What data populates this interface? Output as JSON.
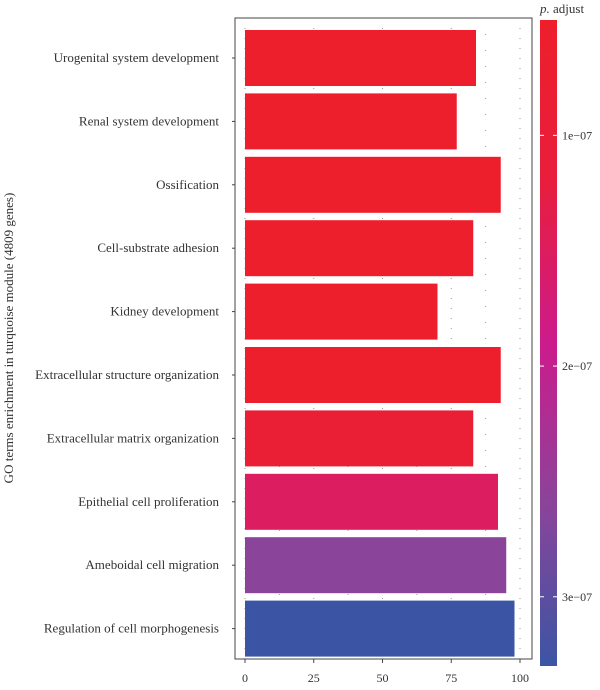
{
  "chart_data": {
    "type": "bar",
    "orientation": "horizontal",
    "title": "",
    "xlabel": "",
    "ylabel": "GO terms enrichment in turquoise module (4809 genes)",
    "xlim": [
      0,
      100
    ],
    "xticks": [
      0,
      25,
      50,
      75,
      100
    ],
    "categories": [
      "Urogenital system development",
      "Renal system development",
      "Ossification",
      "Cell-substrate adhesion",
      "Kidney development",
      "Extracellular structure organization",
      "Extracellular matrix organization",
      "Epithelial cell proliferation",
      "Ameboidal cell migration",
      "Regulation of cell morphogenesis"
    ],
    "values": [
      84,
      77,
      93,
      83,
      70,
      93,
      83,
      92,
      95,
      98
    ],
    "bar_colors": [
      "#ee1f2c",
      "#ee1f2c",
      "#ee1f2c",
      "#ee1f2c",
      "#ee1f2c",
      "#ee1f2c",
      "#ea1e35",
      "#dc1d5f",
      "#8a449a",
      "#3b55a4"
    ],
    "grid": "dotted vertical",
    "legend": {
      "title_italic": "p.",
      "title_rest": " adjust",
      "placement": "right",
      "range": [
        5e-08,
        3.3e-07
      ],
      "ticks": [
        {
          "label": "1e−07",
          "value": 1e-07
        },
        {
          "label": "2e−07",
          "value": 2e-07
        },
        {
          "label": "3e−07",
          "value": 3e-07
        }
      ],
      "gradient_colors": [
        "#ee1f2c",
        "#e81e3c",
        "#cc1b8c",
        "#8a449a",
        "#3b55a4"
      ]
    }
  }
}
